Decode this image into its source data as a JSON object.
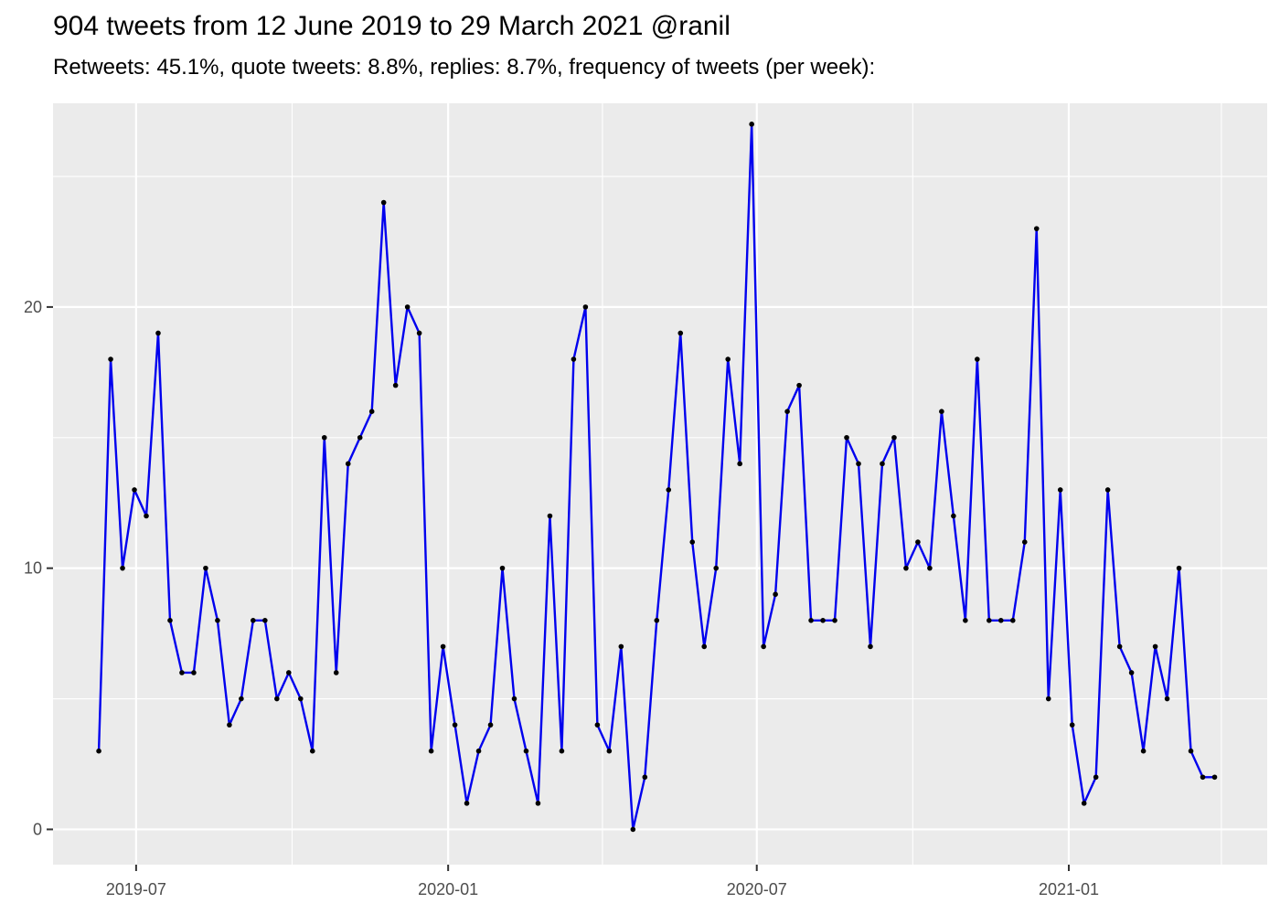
{
  "chart_data": {
    "type": "line",
    "title": "904 tweets from 12 June 2019 to 29 March 2021 @ranil",
    "subtitle": "Retweets: 45.1%, quote tweets: 8.8%, replies: 8.7%, frequency of tweets (per week):",
    "xlabel": "",
    "ylabel": "",
    "x_tick_labels": [
      "2019-07",
      "2020-01",
      "2020-07",
      "2021-01"
    ],
    "y_tick_labels": [
      "0",
      "10",
      "20"
    ],
    "ylim": [
      -1.35,
      27.8
    ],
    "xlim": [
      "2019-05-13",
      "2021-04-28"
    ],
    "grid": true,
    "line_color": "#0000ee",
    "point_color": "#000000",
    "panel_color": "#ebebeb",
    "grid_color": "#ffffff",
    "series": [
      {
        "x": [
          "2019-06-09",
          "2019-06-16",
          "2019-06-23",
          "2019-06-30",
          "2019-07-07",
          "2019-07-14",
          "2019-07-21",
          "2019-07-28",
          "2019-08-04",
          "2019-08-11",
          "2019-08-18",
          "2019-08-25",
          "2019-09-01",
          "2019-09-08",
          "2019-09-15",
          "2019-09-22",
          "2019-09-29",
          "2019-10-06",
          "2019-10-13",
          "2019-10-20",
          "2019-10-27",
          "2019-11-03",
          "2019-11-10",
          "2019-11-17",
          "2019-11-24",
          "2019-12-01",
          "2019-12-08",
          "2019-12-15",
          "2019-12-22",
          "2019-12-29",
          "2020-01-05",
          "2020-01-12",
          "2020-01-19",
          "2020-01-26",
          "2020-02-02",
          "2020-02-09",
          "2020-02-16",
          "2020-02-23",
          "2020-03-01",
          "2020-03-08",
          "2020-03-15",
          "2020-03-22",
          "2020-03-29",
          "2020-04-05",
          "2020-04-12",
          "2020-04-19",
          "2020-04-26",
          "2020-05-03",
          "2020-05-10",
          "2020-05-17",
          "2020-05-24",
          "2020-05-31",
          "2020-06-07",
          "2020-06-14",
          "2020-06-21",
          "2020-06-28",
          "2020-07-05",
          "2020-07-12",
          "2020-07-19",
          "2020-07-26",
          "2020-08-02",
          "2020-08-09",
          "2020-08-16",
          "2020-08-23",
          "2020-08-30",
          "2020-09-06",
          "2020-09-13",
          "2020-09-20",
          "2020-09-27",
          "2020-10-04",
          "2020-10-11",
          "2020-10-18",
          "2020-10-25",
          "2020-11-01",
          "2020-11-08",
          "2020-11-15",
          "2020-11-22",
          "2020-11-29",
          "2020-12-06",
          "2020-12-13",
          "2020-12-20",
          "2020-12-27",
          "2021-01-03",
          "2021-01-10",
          "2021-01-17",
          "2021-01-24",
          "2021-01-31",
          "2021-02-07",
          "2021-02-14",
          "2021-02-21",
          "2021-02-28",
          "2021-03-07",
          "2021-03-14",
          "2021-03-21",
          "2021-03-28"
        ],
        "y": [
          3,
          18,
          10,
          13,
          12,
          19,
          8,
          6,
          6,
          10,
          8,
          4,
          5,
          8,
          8,
          5,
          6,
          5,
          3,
          15,
          6,
          14,
          15,
          16,
          24,
          17,
          20,
          19,
          3,
          7,
          4,
          1,
          3,
          4,
          10,
          5,
          3,
          1,
          12,
          3,
          18,
          20,
          4,
          3,
          7,
          0,
          2,
          8,
          13,
          19,
          11,
          7,
          10,
          18,
          14,
          27,
          7,
          9,
          16,
          17,
          8,
          8,
          8,
          15,
          14,
          7,
          14,
          15,
          10,
          11,
          10,
          16,
          12,
          8,
          18,
          8,
          8,
          8,
          11,
          23,
          5,
          13,
          4,
          1,
          2,
          13,
          7,
          6,
          3,
          7,
          5,
          10,
          3,
          2,
          2
        ]
      }
    ]
  }
}
